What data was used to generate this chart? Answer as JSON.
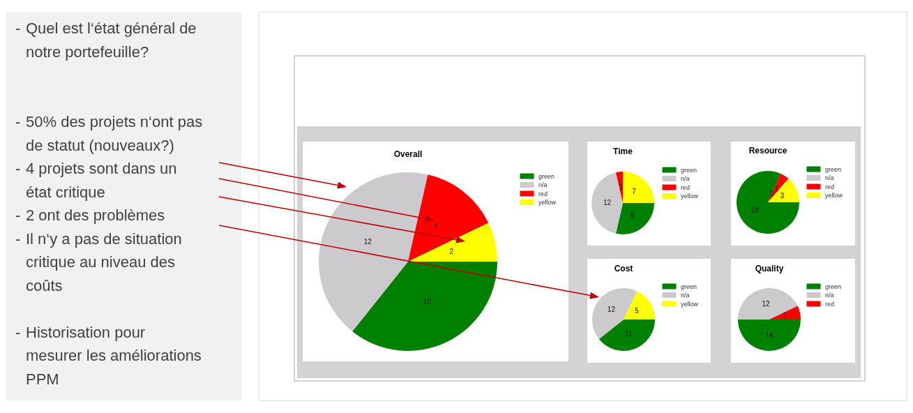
{
  "chart_data": [
    {
      "type": "other",
      "annotations": [
        "- Quel est l‘état général de notre portefeuille?",
        "- 50% des projets n‘ont pas de statut (nouveaux?)",
        "- 4 projets sont dans un état critique",
        "- 2 ont des problèmes",
        "- Il n‘y a pas de situation critique au niveau des coûts",
        "- Historisation pour mesurer les améliorations PPM"
      ]
    },
    {
      "type": "pie",
      "title": "Overall",
      "categories": [
        "green",
        "n/a",
        "red",
        "yellow"
      ],
      "values": [
        10,
        12,
        4,
        2
      ],
      "colors": [
        "#008000",
        "#cccacc",
        "#ff0000",
        "#ffff00"
      ],
      "data_labels": true,
      "legend": "top right"
    },
    {
      "type": "pie",
      "title": "Time",
      "categories": [
        "green",
        "n/a",
        "red",
        "yellow"
      ],
      "values": [
        8,
        12,
        1,
        7
      ],
      "colors": [
        "#008000",
        "#cccacc",
        "#ff0000",
        "#ffff00"
      ],
      "data_labels": true,
      "legend": "top right"
    },
    {
      "type": "pie",
      "title": "Resource",
      "categories": [
        "green",
        "n/a",
        "red",
        "yellow"
      ],
      "values": [
        18,
        0,
        1,
        3
      ],
      "colors": [
        "#008000",
        "#cccacc",
        "#ff0000",
        "#ffff00"
      ],
      "data_labels": true,
      "value_labels": [
        "18",
        "0",
        "1",
        "3"
      ],
      "legend": "top right"
    },
    {
      "type": "pie",
      "title": "Cost",
      "categories": [
        "green",
        "n/a",
        "yellow"
      ],
      "values": [
        11,
        12,
        5
      ],
      "colors": [
        "#008000",
        "#cccacc",
        "#ffff00"
      ],
      "data_labels": true,
      "legend": "top right"
    },
    {
      "type": "pie",
      "title": "Quality",
      "categories": [
        "green",
        "n/a",
        "red"
      ],
      "values": [
        14,
        12,
        2
      ],
      "colors": [
        "#008000",
        "#cccacc",
        "#ff0000"
      ],
      "data_labels": true,
      "legend": "top right"
    }
  ]
}
